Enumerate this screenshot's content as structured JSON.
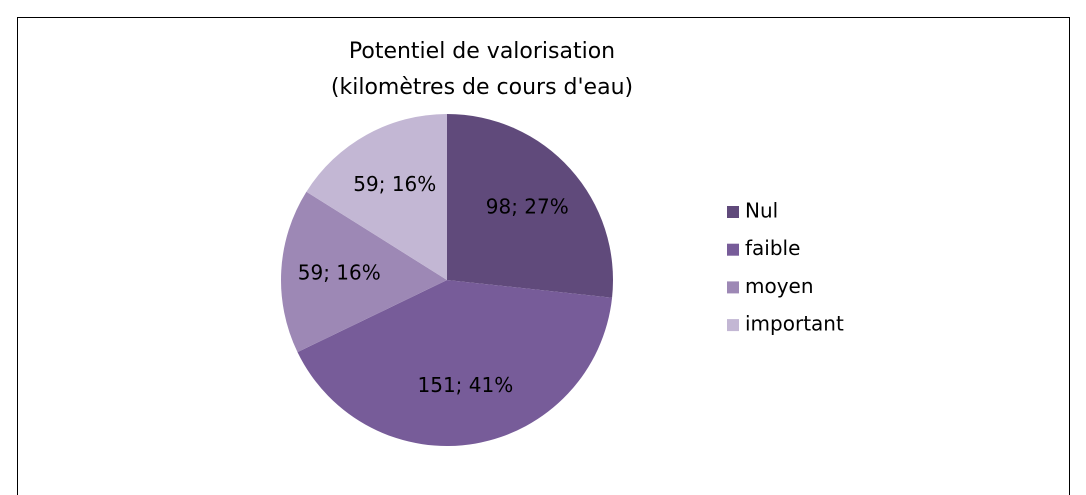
{
  "chart_data": {
    "type": "pie",
    "title": [
      "Potentiel de valorisation",
      "(kilomètres de cours d'eau)"
    ],
    "categories": [
      "Nul",
      "faible",
      "moyen",
      "important"
    ],
    "values": [
      98,
      151,
      59,
      59
    ],
    "value_labels": [
      "98; 27%",
      "151; 41%",
      "59; 16%",
      "59; 16%"
    ],
    "colors": [
      "#604a7b",
      "#775c99",
      "#9d88b5",
      "#c3b7d4"
    ],
    "legend": "right"
  }
}
